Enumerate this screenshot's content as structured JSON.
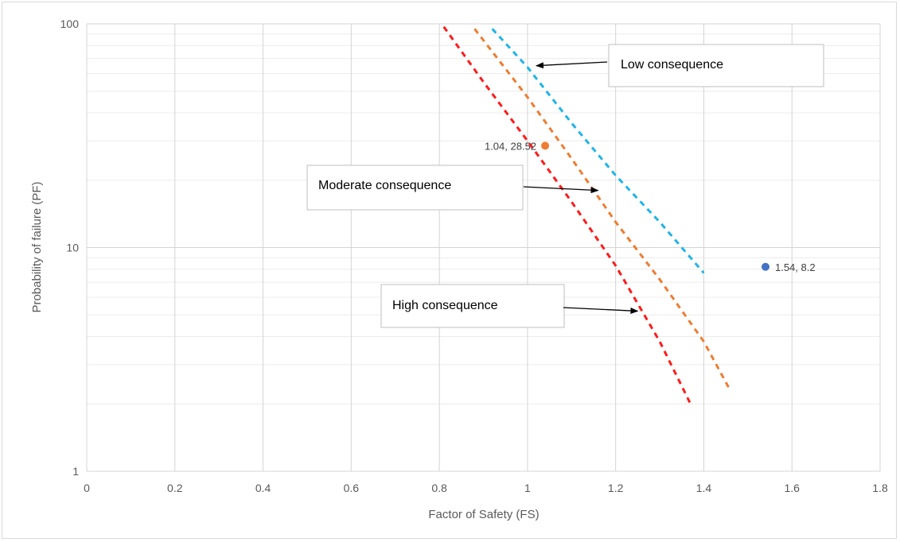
{
  "chart_data": {
    "type": "line",
    "xlabel": "Factor of Safety (FS)",
    "ylabel": "Probability of failure (PF)",
    "xlim": [
      0,
      1.8
    ],
    "ylim": [
      1,
      100
    ],
    "y_scale": "log",
    "grid": true,
    "x_ticks": [
      "0",
      "0.2",
      "0.4",
      "0.6",
      "0.8",
      "1",
      "1.2",
      "1.4",
      "1.6",
      "1.8"
    ],
    "y_ticks": [
      "1",
      "10",
      "100"
    ],
    "series": [
      {
        "name": "Low consequence",
        "color": "#1fb4e8",
        "dash": true,
        "x": [
          0.92,
          1.0,
          1.1,
          1.2,
          1.3,
          1.4
        ],
        "y": [
          95,
          64,
          36,
          21,
          13,
          7.7
        ]
      },
      {
        "name": "Moderate consequence",
        "color": "#ed7d31",
        "dash": true,
        "x": [
          0.88,
          1.0,
          1.1,
          1.2,
          1.3,
          1.4,
          1.46
        ],
        "y": [
          95,
          47,
          25,
          13,
          7.2,
          3.8,
          2.3
        ]
      },
      {
        "name": "High consequence",
        "color": "#ff1a1a",
        "dash": true,
        "x": [
          0.81,
          0.9,
          1.0,
          1.1,
          1.2,
          1.3,
          1.37
        ],
        "y": [
          97,
          55,
          30,
          16,
          8.3,
          3.8,
          2.0
        ]
      }
    ],
    "points": [
      {
        "x": 1.04,
        "y": 28.52,
        "label": "1.04, 28.52",
        "color": "#ed7d31"
      },
      {
        "x": 1.54,
        "y": 8.2,
        "label": "1.54, 8.2",
        "color": "#4472c4"
      }
    ],
    "annotations": [
      {
        "text": "Low consequence",
        "arrow_to": {
          "x": 1.02,
          "y": 65
        }
      },
      {
        "text": "Moderate consequence",
        "arrow_to": {
          "x": 1.16,
          "y": 18
        }
      },
      {
        "text": "High consequence",
        "arrow_to": {
          "x": 1.25,
          "y": 5.2
        }
      }
    ]
  }
}
